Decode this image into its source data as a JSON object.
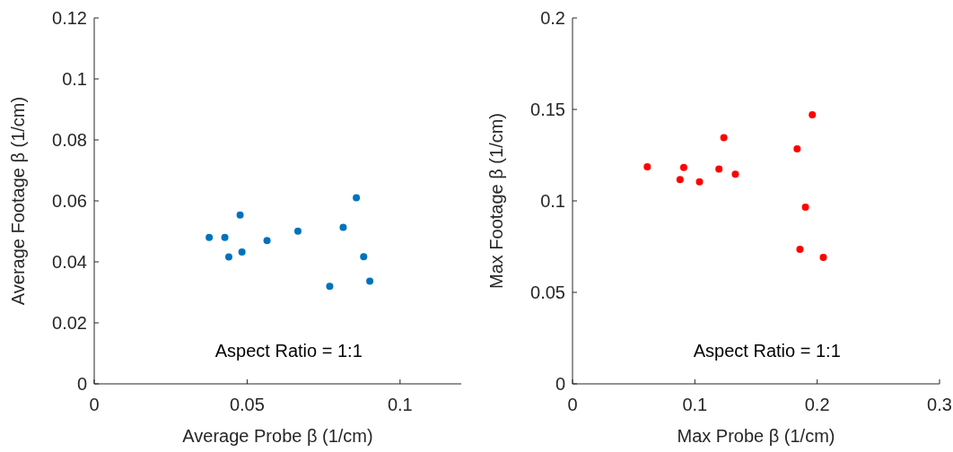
{
  "chart_data": [
    {
      "type": "scatter",
      "xlabel": "Average Probe β (1/cm)",
      "ylabel": "Average Footage β (1/cm)",
      "xlim": [
        0,
        0.12
      ],
      "xticks": [
        0,
        0.05,
        0.1
      ],
      "ylim": [
        0,
        0.12
      ],
      "yticks": [
        0,
        0.02,
        0.04,
        0.06,
        0.08,
        0.1,
        0.12
      ],
      "marker": "circle",
      "grid": false,
      "annotations": [
        "Aspect Ratio = 1:1"
      ],
      "series": [
        {
          "color": "#0072bd",
          "x": [
            0.0376,
            0.0427,
            0.044,
            0.0477,
            0.0483,
            0.0565,
            0.0666,
            0.077,
            0.0814,
            0.0857,
            0.0881,
            0.0901
          ],
          "values": [
            0.048,
            0.048,
            0.0416,
            0.0554,
            0.0432,
            0.047,
            0.0501,
            0.032,
            0.0513,
            0.061,
            0.0417,
            0.0337
          ]
        }
      ]
    },
    {
      "type": "scatter",
      "xlabel": "Max Probe β (1/cm)",
      "ylabel": "Max Footage β (1/cm)",
      "xlim": [
        0,
        0.3
      ],
      "xticks": [
        0,
        0.1,
        0.2,
        0.3
      ],
      "ylim": [
        0,
        0.2
      ],
      "yticks": [
        0,
        0.05,
        0.1,
        0.15,
        0.2
      ],
      "marker": "circle",
      "grid": false,
      "annotations": [
        "Aspect Ratio = 1:1"
      ],
      "series": [
        {
          "color": "#ff0000",
          "x": [
            0.0611,
            0.0879,
            0.0909,
            0.1038,
            0.1197,
            0.1237,
            0.1331,
            0.1836,
            0.1859,
            0.1904,
            0.196,
            0.205
          ],
          "values": [
            0.1186,
            0.1116,
            0.1183,
            0.1104,
            0.1174,
            0.1346,
            0.1146,
            0.1284,
            0.0735,
            0.0966,
            0.1471,
            0.0691
          ]
        }
      ]
    }
  ]
}
